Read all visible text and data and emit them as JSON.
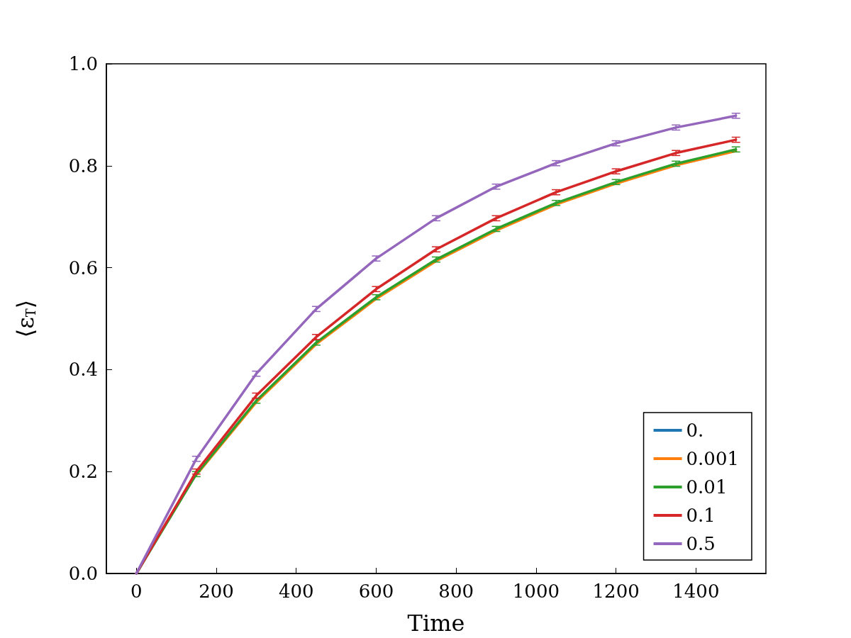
{
  "chart_data": {
    "type": "line",
    "xlabel": "Time",
    "ylabel": "⟨ε$_{T}$⟩",
    "x": [
      0,
      150,
      300,
      450,
      600,
      750,
      900,
      1050,
      1200,
      1350,
      1500
    ],
    "series": [
      {
        "name": "0.",
        "color": "#1f77b4",
        "values": [
          null,
          null,
          null,
          null,
          null,
          null,
          null,
          null,
          null,
          null,
          null
        ]
      },
      {
        "name": "0.001",
        "color": "#ff7f0e",
        "values": [
          null,
          0.193,
          0.336,
          0.45,
          0.539,
          0.613,
          0.673,
          0.724,
          0.765,
          0.801,
          0.829
        ]
      },
      {
        "name": "0.01",
        "color": "#2ca02c",
        "values": [
          0,
          0.195,
          0.339,
          0.453,
          0.542,
          0.616,
          0.676,
          0.727,
          0.768,
          0.804,
          0.832
        ],
        "errors": [
          null,
          0.005,
          0.005,
          0.005,
          0.005,
          0.005,
          0.005,
          0.005,
          0.005,
          0.005,
          0.005
        ]
      },
      {
        "name": "0.1",
        "color": "#d62728",
        "values": [
          0,
          0.2,
          0.349,
          0.464,
          0.558,
          0.636,
          0.697,
          0.748,
          0.789,
          0.825,
          0.851
        ],
        "errors": [
          null,
          0.005,
          0.005,
          0.005,
          0.005,
          0.005,
          0.005,
          0.005,
          0.005,
          0.005,
          0.005
        ]
      },
      {
        "name": "0.5",
        "color": "#9467bd",
        "values": [
          0,
          0.225,
          0.392,
          0.519,
          0.618,
          0.697,
          0.759,
          0.805,
          0.844,
          0.875,
          0.898
        ],
        "errors": [
          null,
          0.005,
          0.005,
          0.005,
          0.005,
          0.005,
          0.005,
          0.005,
          0.005,
          0.005,
          0.005
        ]
      }
    ],
    "xlim": [
      -75,
      1575
    ],
    "xticks": [
      0,
      200,
      400,
      600,
      800,
      1000,
      1200,
      1400
    ],
    "ylim": [
      0,
      1
    ],
    "yticks": [
      {
        "value": 0,
        "label": "0.0"
      },
      {
        "value": 0.2,
        "label": "0.2"
      },
      {
        "value": 0.4,
        "label": "0.4"
      },
      {
        "value": 0.6,
        "label": "0.6"
      },
      {
        "value": 0.8,
        "label": "0.8"
      },
      {
        "value": 1,
        "label": "1.0"
      }
    ],
    "grid": false,
    "legend": "bottom right",
    "marker": "none",
    "line_style": "solid"
  }
}
